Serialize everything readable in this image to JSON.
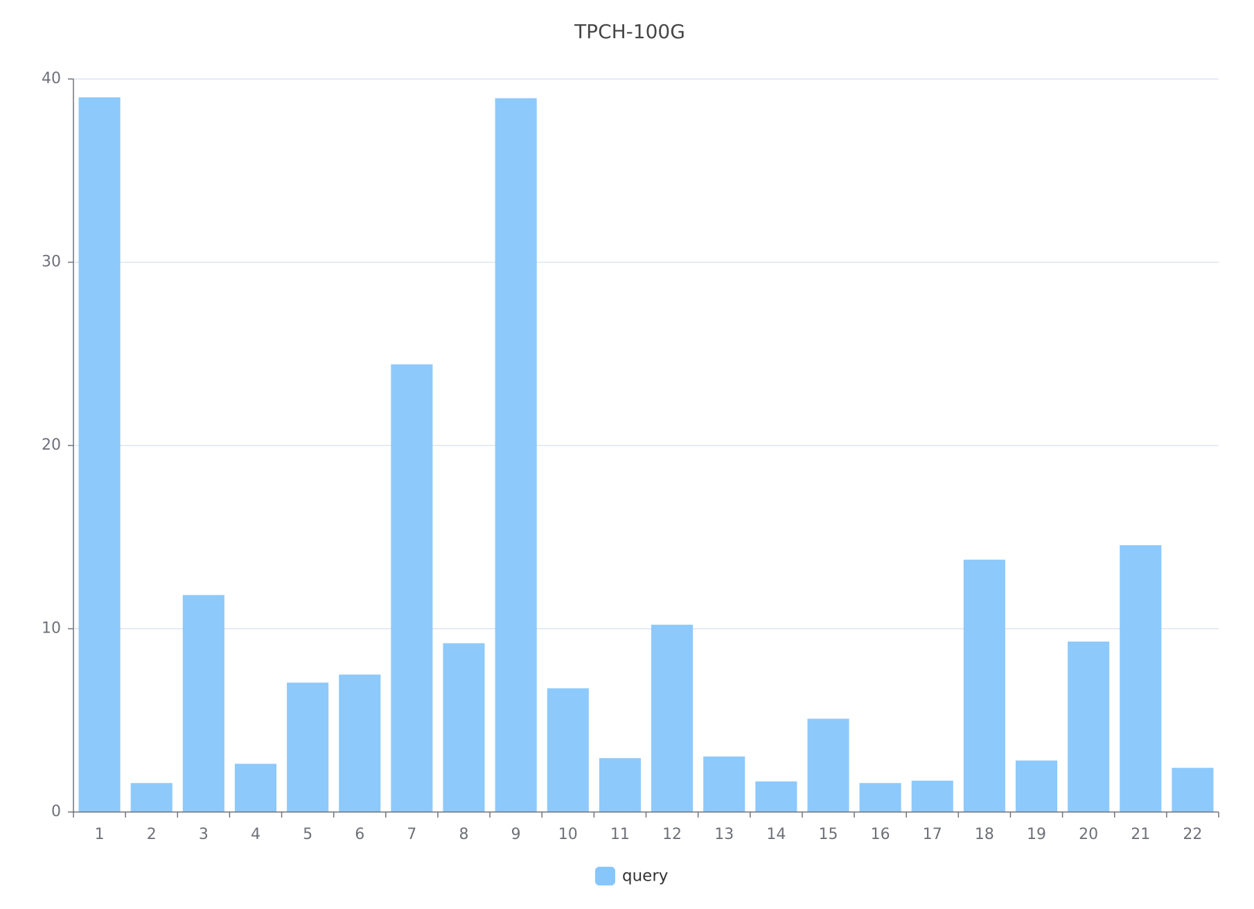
{
  "chart_data": {
    "type": "bar",
    "title": "TPCH-100G",
    "categories": [
      "1",
      "2",
      "3",
      "4",
      "5",
      "6",
      "7",
      "8",
      "9",
      "10",
      "11",
      "12",
      "13",
      "14",
      "15",
      "16",
      "17",
      "18",
      "19",
      "20",
      "21",
      "22"
    ],
    "series": [
      {
        "name": "query",
        "color": "#87c6fb",
        "values": [
          39.0,
          1.58,
          11.84,
          2.63,
          7.06,
          7.5,
          24.43,
          9.21,
          38.95,
          6.75,
          2.94,
          10.22,
          3.03,
          1.67,
          5.09,
          1.58,
          1.71,
          13.77,
          2.81,
          9.3,
          14.56,
          2.41
        ]
      }
    ],
    "ylim": [
      0,
      40
    ],
    "yticks": [
      0,
      10,
      20,
      30,
      40
    ],
    "grid": true
  }
}
